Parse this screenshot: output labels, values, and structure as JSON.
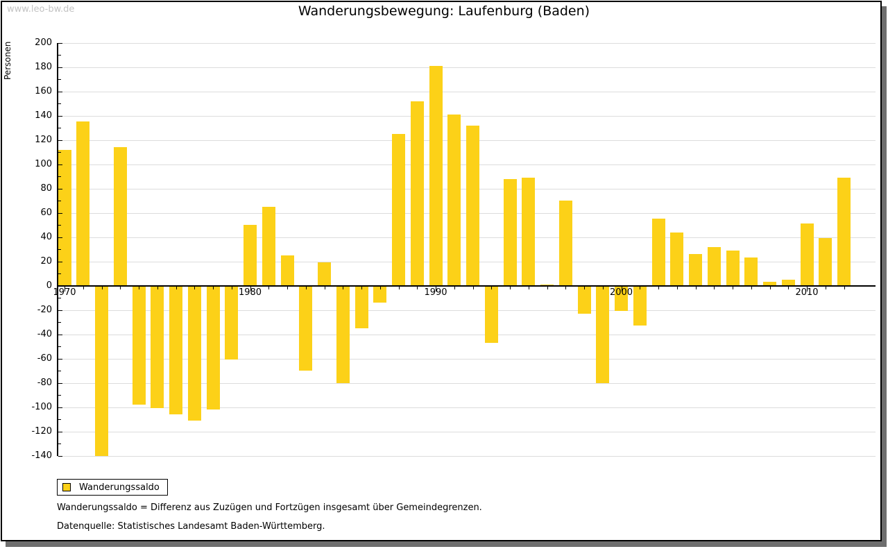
{
  "watermark": "www.leo-bw.de",
  "header": {
    "title": "Wanderungsbewegung: Laufenburg (Baden)"
  },
  "legend": {
    "label": "Wanderungssaldo",
    "swatch_color": "#fcd118"
  },
  "footnotes": {
    "definition": "Wanderungssaldo = Differenz aus Zuzügen und Fortzügen insgesamt über Gemeindegrenzen.",
    "source": "Datenquelle: Statistisches Landesamt Baden-Württemberg."
  },
  "colors": {
    "bar": "#fcd118",
    "grid": "#dcdcdc",
    "axis": "#000000",
    "watermark": "#c3c3c3",
    "frame_shadow": "#6e6e6e"
  },
  "chart_data": {
    "type": "bar",
    "title": "Wanderungsbewegung: Laufenburg (Baden)",
    "xlabel": "",
    "ylabel": "Personen",
    "series_name": "Wanderungssaldo",
    "ylim": [
      -140,
      200
    ],
    "ytick_major_step": 20,
    "ytick_minor_step": 10,
    "grid": true,
    "legend_position": "bottom-left",
    "x_major_ticks": [
      1970,
      1980,
      1990,
      2000,
      2010
    ],
    "years": [
      1970,
      1971,
      1972,
      1973,
      1974,
      1975,
      1976,
      1977,
      1978,
      1979,
      1980,
      1981,
      1982,
      1983,
      1984,
      1985,
      1986,
      1987,
      1988,
      1989,
      1990,
      1991,
      1992,
      1993,
      1994,
      1995,
      1996,
      1997,
      1998,
      1999,
      2000,
      2001,
      2002,
      2003,
      2004,
      2005,
      2006,
      2007,
      2008,
      2009,
      2010,
      2011,
      2012
    ],
    "values": [
      112,
      135,
      -140,
      114,
      -98,
      -101,
      -106,
      -111,
      -102,
      -61,
      50,
      65,
      25,
      -70,
      19,
      -80,
      -35,
      -14,
      125,
      152,
      181,
      141,
      132,
      -47,
      88,
      89,
      1,
      70,
      -23,
      -80,
      -21,
      -33,
      55,
      44,
      26,
      32,
      29,
      23,
      3,
      5,
      51,
      39,
      89
    ]
  }
}
